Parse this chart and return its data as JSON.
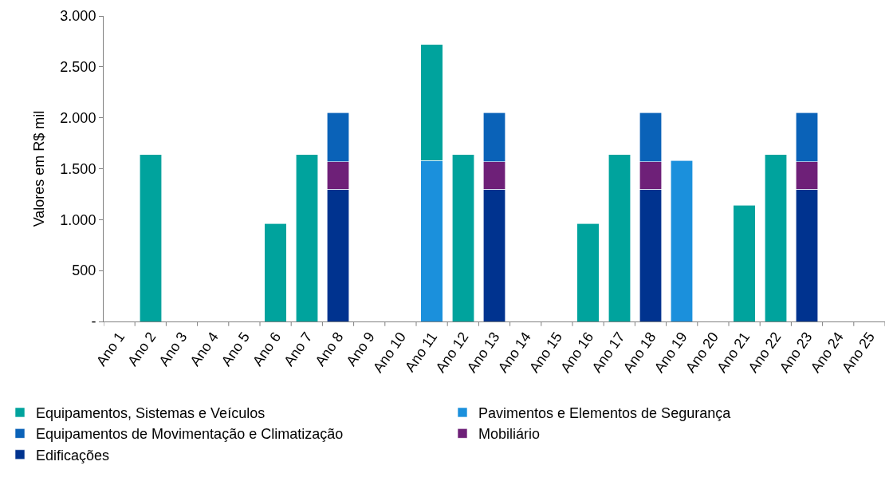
{
  "chart_data": {
    "type": "bar",
    "stacked": true,
    "ylabel": "Valores em R$ mil",
    "categories": [
      "Ano 1",
      "Ano 2",
      "Ano 3",
      "Ano 4",
      "Ano 5",
      "Ano 6",
      "Ano 7",
      "Ano 8",
      "Ano 9",
      "Ano 10",
      "Ano 11",
      "Ano 12",
      "Ano 13",
      "Ano 14",
      "Ano 15",
      "Ano 16",
      "Ano 17",
      "Ano 18",
      "Ano 19",
      "Ano 20",
      "Ano 21",
      "Ano 22",
      "Ano 23",
      "Ano 24",
      "Ano 25"
    ],
    "series": [
      {
        "name": "Edificações",
        "color": "#00338f",
        "values": [
          null,
          null,
          null,
          null,
          null,
          null,
          null,
          1300,
          null,
          null,
          null,
          null,
          1300,
          null,
          null,
          null,
          null,
          1300,
          null,
          null,
          null,
          null,
          1300,
          null,
          null
        ]
      },
      {
        "name": "Mobiliário",
        "color": "#6e2078",
        "values": [
          null,
          null,
          null,
          null,
          null,
          null,
          null,
          270,
          null,
          null,
          null,
          null,
          270,
          null,
          null,
          null,
          null,
          270,
          null,
          null,
          null,
          null,
          270,
          null,
          null
        ]
      },
      {
        "name": "Equipamentos de Movimentação e Climatização",
        "color": "#0a62b8",
        "values": [
          null,
          null,
          null,
          null,
          null,
          null,
          null,
          480,
          null,
          null,
          null,
          null,
          480,
          null,
          null,
          null,
          null,
          480,
          null,
          null,
          null,
          null,
          480,
          null,
          null
        ]
      },
      {
        "name": "Pavimentos e Elementos de Segurança",
        "color": "#1b90dc",
        "values": [
          null,
          null,
          null,
          null,
          null,
          null,
          null,
          null,
          null,
          null,
          1580,
          null,
          null,
          null,
          null,
          null,
          null,
          null,
          1580,
          null,
          null,
          null,
          null,
          null,
          null
        ]
      },
      {
        "name": "Equipamentos, Sistemas e Veículos",
        "color": "#00a39d",
        "values": [
          null,
          1640,
          null,
          null,
          null,
          960,
          1640,
          null,
          null,
          null,
          1140,
          1640,
          null,
          null,
          null,
          960,
          1640,
          null,
          null,
          null,
          1140,
          1640,
          null,
          null,
          null
        ]
      }
    ],
    "ylim": [
      0,
      3000
    ],
    "yticks": [
      {
        "value": 0,
        "label": "-"
      },
      {
        "value": 500,
        "label": "500"
      },
      {
        "value": 1000,
        "label": "1.000"
      },
      {
        "value": 1500,
        "label": "1.500"
      },
      {
        "value": 2000,
        "label": "2.000"
      },
      {
        "value": 2500,
        "label": "2.500"
      },
      {
        "value": 3000,
        "label": "3.000"
      }
    ],
    "legend": "bottom"
  }
}
